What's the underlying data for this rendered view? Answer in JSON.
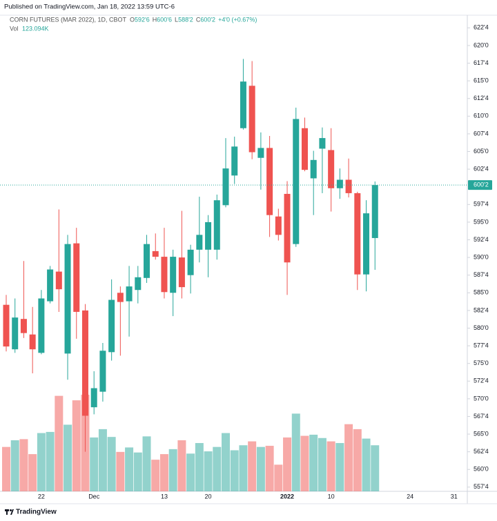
{
  "published": "Published on TradingView.com, Jan 18, 2022 13:59 UTC-6",
  "brand": "TradingView",
  "chart_data": {
    "type": "candlestick",
    "title": "CORN FUTURES (MAR 2022), 1D, CBOT",
    "ohlc_legend": [
      "O",
      "H",
      "L",
      "C"
    ],
    "ohlc_values": [
      "592'6",
      "600'6",
      "588'2",
      "600'2"
    ],
    "change_label": "+4'0 (+0.67%)",
    "volume_title": "Vol",
    "volume_value_label": "123.094K",
    "last_price_label": "600'2",
    "up_color": "#26a69a",
    "down_color": "#ef5350",
    "categories": [
      null,
      null,
      null,
      null,
      "22",
      null,
      null,
      null,
      null,
      null,
      "Dec",
      null,
      null,
      null,
      null,
      null,
      null,
      null,
      "13",
      null,
      null,
      null,
      null,
      "20",
      null,
      null,
      null,
      null,
      null,
      null,
      null,
      null,
      "2022",
      null,
      null,
      null,
      null,
      "10",
      null,
      null,
      null,
      null,
      null,
      null,
      null,
      null,
      "24",
      null,
      null,
      null,
      null,
      "31"
    ],
    "open": [
      583.3,
      577.0,
      581.3,
      579.1,
      576.5,
      583.8,
      588.0,
      576.4,
      592.0,
      582.5,
      568.8,
      571.0,
      576.6,
      585.0,
      583.8,
      585.4,
      587.1,
      590.9,
      590.1,
      585.0,
      590.0,
      587.5,
      591.1,
      591.1,
      591.1,
      597.4,
      601.6,
      608.3,
      614.3,
      604.1,
      605.5,
      595.8,
      599.0,
      591.9,
      608.3,
      601.2,
      605.4,
      605.2,
      599.8,
      601.0,
      599.1,
      587.6,
      592.75,
      null,
      null,
      null,
      null,
      null,
      null,
      null,
      null,
      null
    ],
    "high": [
      584.7,
      584.2,
      589.5,
      583.0,
      585.4,
      588.8,
      596.8,
      593.2,
      594.2,
      583.4,
      573.9,
      577.9,
      586.9,
      585.9,
      588.8,
      588.8,
      593.2,
      593.4,
      594.2,
      591.1,
      596.6,
      591.8,
      598.6,
      596.0,
      598.9,
      606.9,
      607.1,
      618.1,
      617.8,
      607.7,
      607.2,
      596.9,
      600.8,
      611.2,
      609.8,
      605.1,
      608.4,
      608.3,
      602.6,
      604.0,
      599.3,
      598.1,
      600.75,
      null,
      null,
      null,
      null,
      null,
      null,
      null,
      null,
      null
    ],
    "low": [
      576.7,
      576.5,
      578.6,
      573.6,
      576.3,
      583.5,
      582.3,
      572.7,
      578.5,
      562.5,
      567.8,
      569.6,
      575.4,
      576.1,
      578.8,
      583.5,
      586.4,
      589.7,
      584.2,
      581.7,
      584.2,
      584.9,
      589.3,
      587.2,
      589.7,
      597.1,
      600.4,
      608.1,
      603.9,
      599.6,
      592.9,
      592.4,
      584.7,
      591.5,
      602.2,
      596.0,
      599.1,
      596.5,
      598.3,
      598.5,
      585.4,
      585.2,
      588.25,
      null,
      null,
      null,
      null,
      null,
      null,
      null,
      null,
      null
    ],
    "close": [
      577.4,
      581.5,
      579.3,
      577.0,
      584.2,
      588.3,
      585.5,
      591.9,
      582.3,
      567.6,
      571.5,
      576.8,
      584.0,
      583.7,
      585.9,
      587.2,
      591.9,
      590.1,
      585.1,
      590.1,
      585.8,
      591.1,
      593.2,
      595.0,
      598.1,
      602.6,
      605.7,
      614.9,
      604.9,
      605.5,
      596.0,
      593.2,
      589.3,
      609.6,
      602.4,
      603.8,
      606.9,
      599.8,
      601.0,
      599.1,
      587.6,
      596.25,
      600.25,
      null,
      null,
      null,
      null,
      null,
      null,
      null,
      null,
      null
    ],
    "volume": [
      118600,
      136400,
      139400,
      99400,
      155700,
      158700,
      255100,
      178000,
      243200,
      258100,
      143900,
      166100,
      145300,
      105300,
      117200,
      103800,
      146800,
      84500,
      99400,
      112700,
      136400,
      100800,
      129000,
      106800,
      118600,
      155700,
      109700,
      123100,
      133500,
      118600,
      121600,
      71200,
      143900,
      207600,
      148300,
      151300,
      142400,
      133500,
      129000,
      179400,
      166100,
      140900,
      123094,
      null,
      null,
      null,
      null,
      null,
      null,
      null,
      null,
      null
    ],
    "ylim": [
      556.9,
      624.0
    ],
    "yticks": [
      {
        "value": 557.5,
        "label": "557'4"
      },
      {
        "value": 560,
        "label": "560'0"
      },
      {
        "value": 562.5,
        "label": "562'4"
      },
      {
        "value": 565,
        "label": "565'0"
      },
      {
        "value": 567.5,
        "label": "567'4"
      },
      {
        "value": 570,
        "label": "570'0"
      },
      {
        "value": 572.5,
        "label": "572'4"
      },
      {
        "value": 575,
        "label": "575'0"
      },
      {
        "value": 577.5,
        "label": "577'4"
      },
      {
        "value": 580,
        "label": "580'0"
      },
      {
        "value": 582.5,
        "label": "582'4"
      },
      {
        "value": 585,
        "label": "585'0"
      },
      {
        "value": 587.5,
        "label": "587'4"
      },
      {
        "value": 590,
        "label": "590'0"
      },
      {
        "value": 592.5,
        "label": "592'4"
      },
      {
        "value": 595,
        "label": "595'0"
      },
      {
        "value": 597.5,
        "label": "597'4"
      },
      {
        "value": 602.5,
        "label": "602'4"
      },
      {
        "value": 605,
        "label": "605'0"
      },
      {
        "value": 607.5,
        "label": "607'4"
      },
      {
        "value": 610,
        "label": "610'0"
      },
      {
        "value": 612.5,
        "label": "612'4"
      },
      {
        "value": 615,
        "label": "615'0"
      },
      {
        "value": 617.5,
        "label": "617'4"
      },
      {
        "value": 620,
        "label": "620'0"
      },
      {
        "value": 622.5,
        "label": "622'4"
      }
    ],
    "grid": false
  }
}
